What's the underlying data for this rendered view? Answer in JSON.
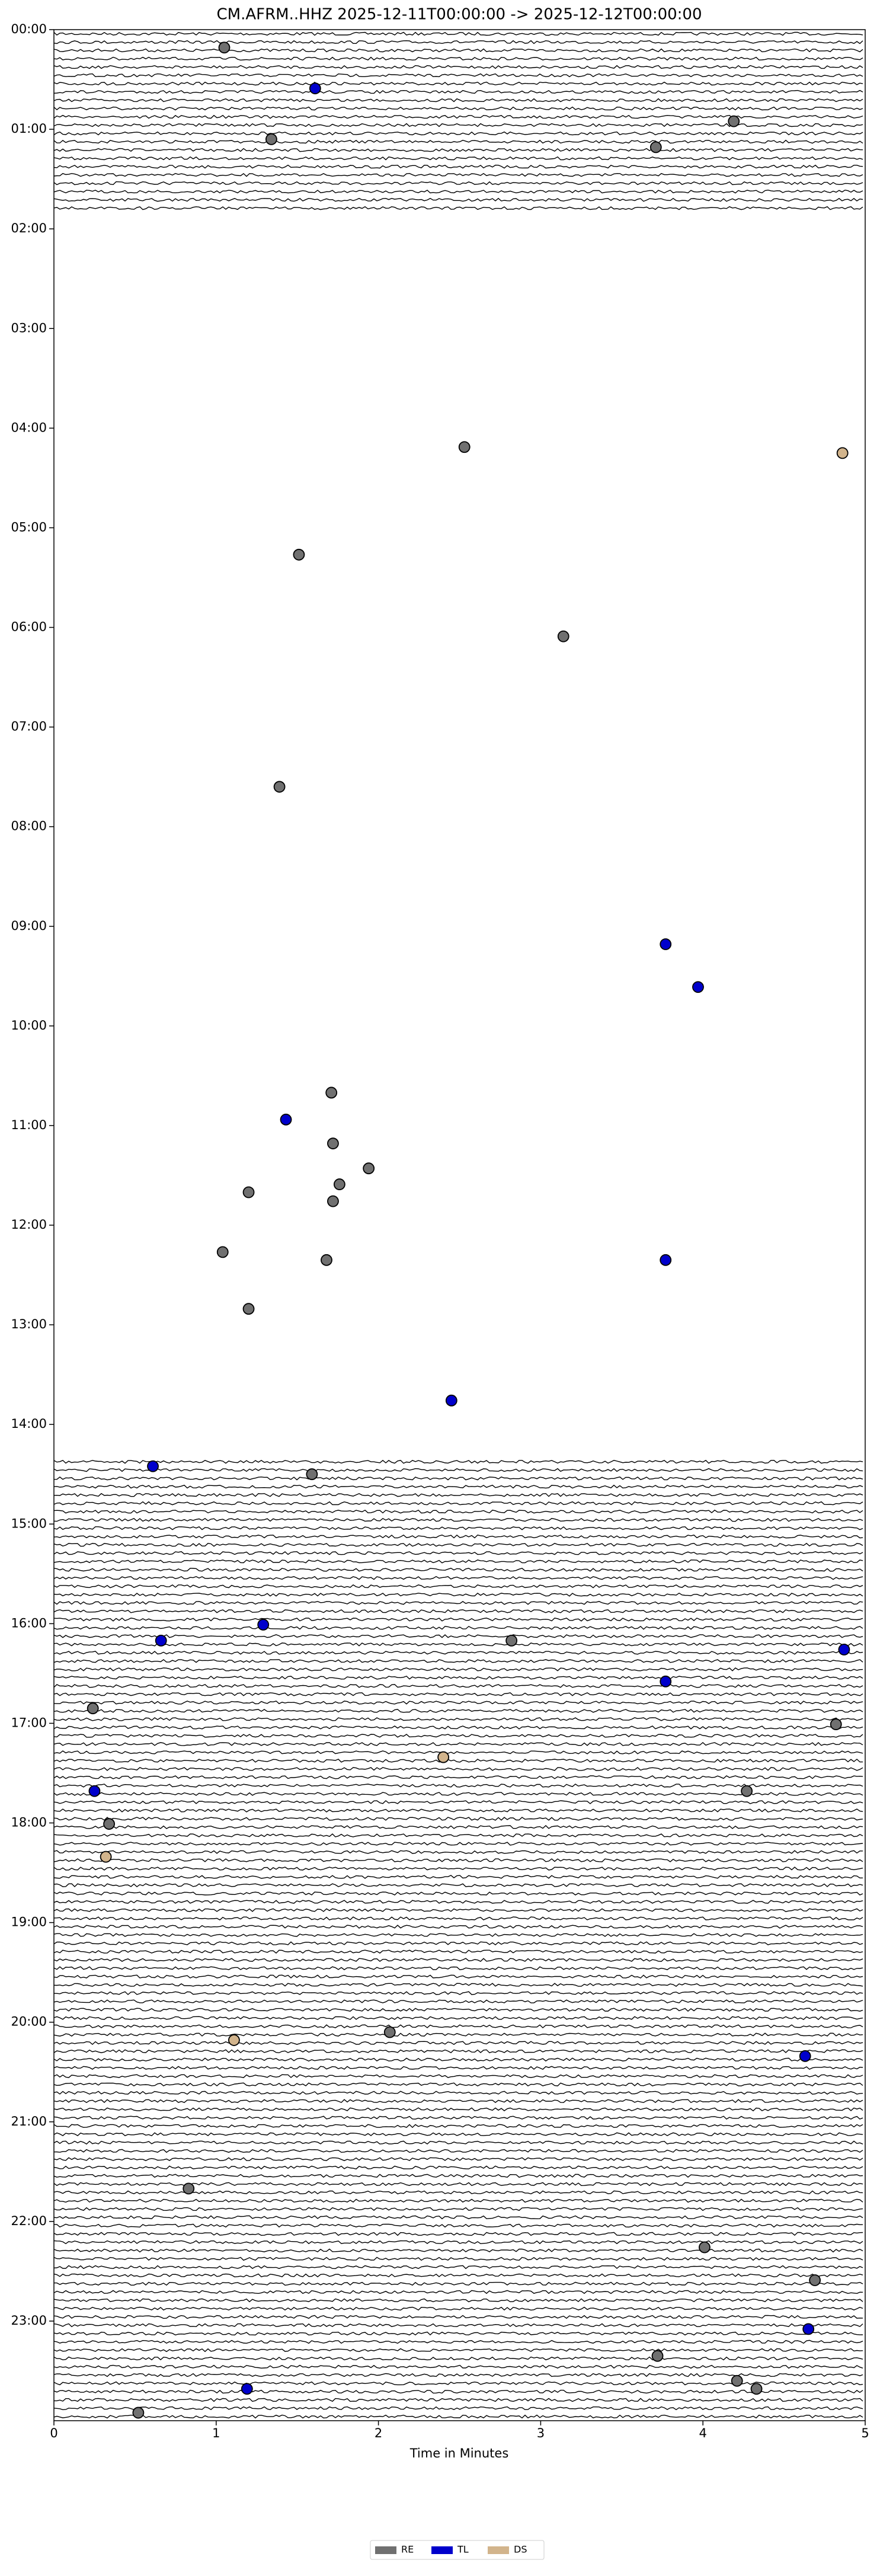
{
  "chart_data": {
    "type": "scatter",
    "title": "CM.AFRM..HHZ  2025-12-11T00:00:00 -> 2025-12-12T00:00:00",
    "x_label": "Time in Minutes",
    "xlim": [
      0,
      5
    ],
    "xticks": [
      0,
      1,
      2,
      3,
      4,
      5
    ],
    "ylim": [
      24,
      0
    ],
    "yticks": [
      {
        "value": 0,
        "label": "00:00"
      },
      {
        "value": 1,
        "label": "01:00"
      },
      {
        "value": 2,
        "label": "02:00"
      },
      {
        "value": 3,
        "label": "03:00"
      },
      {
        "value": 4,
        "label": "04:00"
      },
      {
        "value": 5,
        "label": "05:00"
      },
      {
        "value": 6,
        "label": "06:00"
      },
      {
        "value": 7,
        "label": "07:00"
      },
      {
        "value": 8,
        "label": "08:00"
      },
      {
        "value": 9,
        "label": "09:00"
      },
      {
        "value": 10,
        "label": "10:00"
      },
      {
        "value": 11,
        "label": "11:00"
      },
      {
        "value": 12,
        "label": "12:00"
      },
      {
        "value": 13,
        "label": "13:00"
      },
      {
        "value": 14,
        "label": "14:00"
      },
      {
        "value": 15,
        "label": "15:00"
      },
      {
        "value": 16,
        "label": "16:00"
      },
      {
        "value": 17,
        "label": "17:00"
      },
      {
        "value": 18,
        "label": "18:00"
      },
      {
        "value": 19,
        "label": "19:00"
      },
      {
        "value": 20,
        "label": "20:00"
      },
      {
        "value": 21,
        "label": "21:00"
      },
      {
        "value": 22,
        "label": "22:00"
      },
      {
        "value": 23,
        "label": "23:00"
      }
    ],
    "gaps": [
      [
        1.83,
        14.33
      ]
    ],
    "legend": "lower center",
    "series": [
      {
        "name": "RE",
        "color": "#707070",
        "x": [
          1.05,
          1.34,
          4.19,
          3.71,
          2.53,
          1.51,
          3.14,
          1.39,
          1.71,
          1.72,
          1.94,
          1.76,
          1.2,
          1.72,
          1.04,
          1.68,
          1.2,
          1.59,
          2.82,
          0.24,
          4.82,
          4.27,
          0.34,
          2.07,
          0.83,
          4.01,
          4.69,
          3.72,
          4.21,
          4.33,
          0.52
        ],
        "values": [
          0.18,
          1.1,
          0.92,
          1.18,
          4.19,
          5.27,
          6.09,
          7.6,
          10.67,
          11.18,
          11.43,
          11.59,
          11.67,
          11.76,
          12.27,
          12.35,
          12.84,
          14.5,
          16.17,
          16.85,
          17.01,
          17.68,
          18.01,
          20.1,
          21.67,
          22.26,
          22.59,
          23.35,
          23.6,
          23.68,
          23.92
        ]
      },
      {
        "name": "TL",
        "color": "#0000cc",
        "x": [
          1.61,
          3.77,
          3.97,
          1.43,
          3.77,
          2.45,
          0.61,
          1.29,
          0.66,
          4.87,
          3.77,
          0.25,
          4.63,
          4.65,
          1.19
        ],
        "values": [
          0.59,
          9.18,
          9.61,
          10.94,
          12.35,
          13.76,
          14.42,
          16.01,
          16.17,
          16.26,
          16.58,
          17.68,
          20.34,
          23.08,
          23.68
        ]
      },
      {
        "name": "DS",
        "color": "#d2b48c",
        "x": [
          4.86,
          2.4,
          0.32,
          1.11
        ],
        "values": [
          4.25,
          17.34,
          18.34,
          20.18
        ]
      }
    ]
  }
}
